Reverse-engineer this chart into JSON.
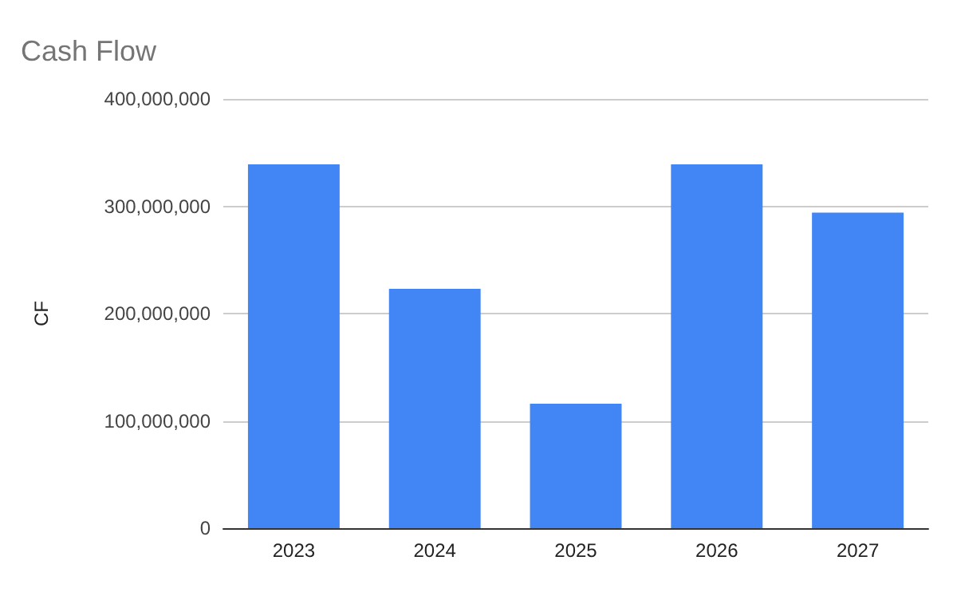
{
  "chart_data": {
    "type": "bar",
    "title": "Cash Flow",
    "ylabel": "CF",
    "categories": [
      "2023",
      "2024",
      "2025",
      "2026",
      "2027"
    ],
    "values": [
      339000000,
      223000000,
      116000000,
      339000000,
      294000000
    ],
    "color": "#4285f4",
    "ylim": [
      0,
      400000000
    ],
    "yticks": [
      0,
      {
        "value": 100000000,
        "label": "100,000,000"
      },
      {
        "value": 200000000,
        "label": "200,000,000"
      },
      {
        "value": 300000000,
        "label": "300,000,000"
      },
      {
        "value": 400000000,
        "label": "400,000,000"
      }
    ],
    "grid": "y"
  }
}
